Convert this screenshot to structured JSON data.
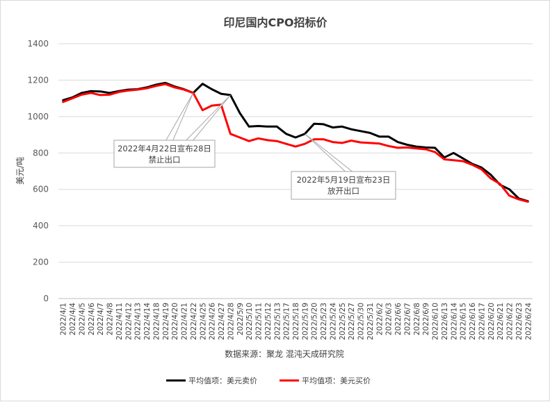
{
  "chart_data": {
    "type": "line",
    "title": "印尼国内CPO招标价",
    "ylabel": "美元/吨",
    "source": "数据来源：聚龙 混沌天成研究院",
    "ylim": [
      0,
      1400
    ],
    "yticks": [
      "0",
      "200",
      "400",
      "600",
      "800",
      "1000",
      "1200",
      "1400"
    ],
    "grid": true,
    "legend_position": "bottom",
    "categories": [
      "2022/4/1",
      "2022/4/4",
      "2022/4/5",
      "2022/4/6",
      "2022/4/7",
      "2022/4/8",
      "2022/4/11",
      "2022/4/12",
      "2022/4/13",
      "2022/4/14",
      "2022/4/18",
      "2022/4/19",
      "2022/4/20",
      "2022/4/21",
      "2022/4/22",
      "2022/4/25",
      "2022/4/26",
      "2022/4/27",
      "2022/4/28",
      "2022/5/9",
      "2022/5/10",
      "2022/5/11",
      "2022/5/12",
      "2022/5/13",
      "2022/5/17",
      "2022/5/18",
      "2022/5/19",
      "2022/5/20",
      "2022/5/23",
      "2022/5/24",
      "2022/5/25",
      "2022/5/27",
      "2022/5/30",
      "2022/5/31",
      "2022/6/2",
      "2022/6/3",
      "2022/6/6",
      "2022/6/7",
      "2022/6/8",
      "2022/6/9",
      "2022/6/10",
      "2022/6/13",
      "2022/6/14",
      "2022/6/15",
      "2022/6/16",
      "2022/6/17",
      "2022/6/20",
      "2022/6/21",
      "2022/6/22",
      "2022/6/23",
      "2022/6/24"
    ],
    "series": [
      {
        "name": "平均值项：美元卖价",
        "color": "#000000",
        "values": [
          1090,
          1105,
          1130,
          1140,
          1138,
          1130,
          1140,
          1148,
          1150,
          1160,
          1175,
          1185,
          1165,
          1150,
          1130,
          1180,
          1150,
          1125,
          1118,
          1020,
          945,
          948,
          945,
          945,
          905,
          885,
          905,
          960,
          958,
          940,
          945,
          930,
          920,
          910,
          890,
          890,
          860,
          845,
          835,
          830,
          828,
          775,
          800,
          770,
          740,
          720,
          680,
          625,
          600,
          550,
          535
        ]
      },
      {
        "name": "平均值项：美元买价",
        "color": "#ff0000",
        "values": [
          1080,
          1100,
          1120,
          1130,
          1118,
          1120,
          1135,
          1143,
          1148,
          1155,
          1168,
          1178,
          1160,
          1148,
          1130,
          1035,
          1060,
          1065,
          905,
          885,
          865,
          880,
          870,
          865,
          850,
          835,
          850,
          875,
          875,
          860,
          855,
          868,
          858,
          855,
          852,
          838,
          828,
          830,
          825,
          820,
          805,
          765,
          760,
          755,
          735,
          710,
          660,
          630,
          565,
          545,
          532
        ]
      }
    ],
    "annotations": [
      {
        "text_line1": "2022年4月22日宣布28日",
        "text_line2": "禁止出口",
        "points_to": [
          "2022/4/22",
          "2022/4/28"
        ]
      },
      {
        "text_line1": "2022年5月19日宣布23日",
        "text_line2": "放开出口",
        "points_to": [
          "2022/5/19"
        ]
      }
    ]
  }
}
